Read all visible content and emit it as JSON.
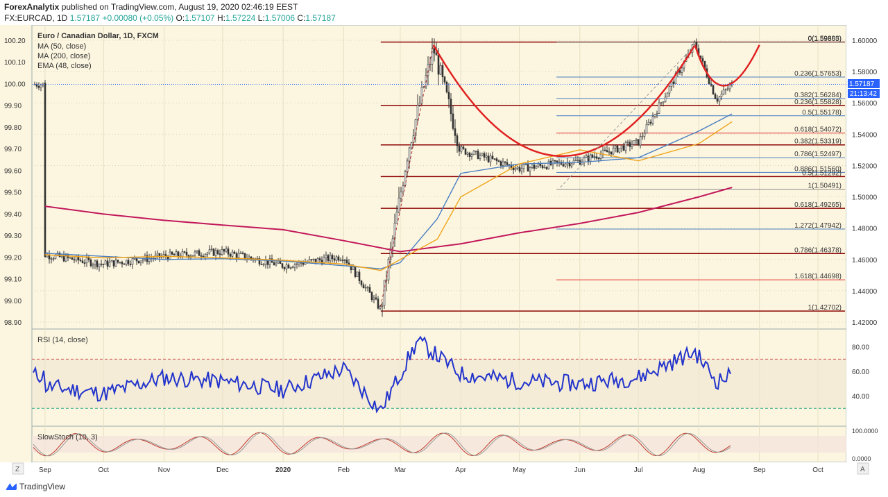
{
  "header": {
    "author": "ForexAnalytix",
    "published": "published on TradingView.com, August 19, 2020 02:46:19 EEST",
    "symbol": "FX:EURCAD, 1D",
    "last": "1.57187",
    "change": "+0.00080 (+0.05%)",
    "o_label": "O:",
    "o": "1.57107",
    "h_label": "H:",
    "h": "1.57224",
    "l_label": "L:",
    "l": "1.57006",
    "c_label": "C:",
    "c": "1.57187"
  },
  "legend": {
    "title": "Euro / Canadian Dollar, 1D, FXCM",
    "ma50": "MA (50, close)",
    "ma200": "MA (200, close)",
    "ema48": "EMA (48, close)"
  },
  "rsi_label": "RSI (14, close)",
  "stoch_label": "SlowStoch (10, 3)",
  "price_badge": "1.57187",
  "timer_badge": "21:13:42",
  "footer": {
    "brand": "TradingView",
    "zoom_left": "Z",
    "auto": "A"
  },
  "colors": {
    "background": "#fcf6e0",
    "ma50": "#4a7ec2",
    "ma200": "#c2185b",
    "ema48": "#f0a31a",
    "rsi": "#2233cc",
    "cup": "#e02020",
    "level": "#8b0000",
    "fib_blue": "#4a7ec2",
    "fib_red": "#e53935",
    "candle_up": "#333333",
    "candle_down": "#333333"
  },
  "chart_data": [
    {
      "type": "line",
      "title": "Euro / Canadian Dollar, 1D, FXCM",
      "x_axis_ticks": [
        "Sep",
        "Oct",
        "Nov",
        "Dec",
        "2020",
        "Feb",
        "Mar",
        "Apr",
        "May",
        "Jun",
        "Jul",
        "Aug",
        "Sep",
        "Oct"
      ],
      "right_axis_ticks": [
        "1.60000",
        "1.58000",
        "1.56000",
        "1.54000",
        "1.52000",
        "1.50000",
        "1.48000",
        "1.46000",
        "1.44000",
        "1.42000"
      ],
      "right_axis_range": [
        1.42,
        1.6
      ],
      "left_axis_ticks": [
        "100.20",
        "100.10",
        "100.00",
        "99.90",
        "99.80",
        "99.70",
        "99.60",
        "99.50",
        "99.40",
        "99.30",
        "99.20",
        "99.10",
        "99.00",
        "98.90"
      ],
      "left_axis_range": [
        98.9,
        100.2
      ],
      "series": [
        {
          "name": "MA (50, close)",
          "x": [
            "2019-09",
            "2019-10",
            "2019-11",
            "2019-12",
            "2020-01",
            "2020-02",
            "2020-02-20",
            "2020-03",
            "2020-03-20",
            "2020-04",
            "2020-05",
            "2020-06",
            "2020-07",
            "2020-08",
            "2020-08-18"
          ],
          "values": [
            1.464,
            1.462,
            1.46,
            1.4605,
            1.459,
            1.456,
            1.454,
            1.458,
            1.486,
            1.515,
            1.521,
            1.522,
            1.525,
            1.542,
            1.553
          ]
        },
        {
          "name": "MA (200, close)",
          "x": [
            "2019-09",
            "2019-10",
            "2019-11",
            "2019-12",
            "2020-01",
            "2020-02",
            "2020-03",
            "2020-04",
            "2020-05",
            "2020-06",
            "2020-07",
            "2020-08",
            "2020-08-18"
          ],
          "values": [
            1.494,
            1.489,
            1.485,
            1.482,
            1.479,
            1.472,
            1.465,
            1.47,
            1.477,
            1.483,
            1.49,
            1.5,
            1.506
          ]
        },
        {
          "name": "EMA (48, close)",
          "x": [
            "2019-09",
            "2019-10",
            "2019-11",
            "2019-12",
            "2020-01",
            "2020-02",
            "2020-02-20",
            "2020-03",
            "2020-03-20",
            "2020-04",
            "2020-05",
            "2020-06",
            "2020-07",
            "2020-08",
            "2020-08-18"
          ],
          "values": [
            1.463,
            1.461,
            1.462,
            1.461,
            1.4595,
            1.457,
            1.453,
            1.46,
            1.473,
            1.5,
            1.521,
            1.53,
            1.523,
            1.534,
            1.548
          ]
        }
      ],
      "price_path": {
        "x": [
          "2019-09",
          "2019-10",
          "2019-11",
          "2019-12",
          "2020-01",
          "2020-02",
          "2020-02-20",
          "2020-03-05",
          "2020-03-18",
          "2020-04",
          "2020-05",
          "2020-06",
          "2020-07",
          "2020-07-30",
          "2020-08-10",
          "2020-08-18"
        ],
        "close": [
          1.463,
          1.457,
          1.462,
          1.465,
          1.456,
          1.462,
          1.428,
          1.53,
          1.595,
          1.53,
          1.518,
          1.523,
          1.535,
          1.598,
          1.562,
          1.5719
        ]
      },
      "horizontal_levels": [
        {
          "label": "0(1.59883)",
          "value": 1.59883
        },
        {
          "label": "0(1.59865)",
          "value": 1.59865
        },
        {
          "label": "0.236(1.57653)",
          "value": 1.57653
        },
        {
          "label": "0.382(1.56284)",
          "value": 1.56284
        },
        {
          "label": "0.236(1.55828)",
          "value": 1.55828
        },
        {
          "label": "0.5(1.55178)",
          "value": 1.55178
        },
        {
          "label": "0.618(1.54072)",
          "value": 1.54072
        },
        {
          "label": "0.382(1.53319)",
          "value": 1.53319
        },
        {
          "label": "0.786(1.52497)",
          "value": 1.52497
        },
        {
          "label": "0.886(1.51560)",
          "value": 1.5156
        },
        {
          "label": "0.5(1.51292)",
          "value": 1.51292
        },
        {
          "label": "1(1.50491)",
          "value": 1.50491
        },
        {
          "label": "0.618(1.49265)",
          "value": 1.49265
        },
        {
          "label": "1.272(1.47942)",
          "value": 1.47942
        },
        {
          "label": "0.786(1.46378)",
          "value": 1.46378
        },
        {
          "label": "1.618(1.44698)",
          "value": 1.44698
        },
        {
          "label": "1(1.42702)",
          "value": 1.42702
        }
      ],
      "annotations": [
        "cup-and-handle pattern drawn in red"
      ]
    },
    {
      "type": "line",
      "title": "RSI (14, close)",
      "y_ticks": [
        "80.00",
        "60.00",
        "40.00"
      ],
      "ylim": [
        20,
        90
      ],
      "bands": [
        70,
        30
      ],
      "series": [
        {
          "name": "RSI (14, close)",
          "x": [
            "2019-09",
            "2019-10",
            "2019-11",
            "2019-12",
            "2020-01",
            "2020-02",
            "2020-02-20",
            "2020-03-10",
            "2020-04",
            "2020-05",
            "2020-06",
            "2020-07",
            "2020-07-30",
            "2020-08-10",
            "2020-08-18"
          ],
          "values": [
            48,
            42,
            55,
            52,
            45,
            62,
            28,
            85,
            58,
            52,
            50,
            55,
            76,
            52,
            57
          ]
        }
      ]
    },
    {
      "type": "line",
      "title": "SlowStoch (10, 3)",
      "y_ticks": [
        "100.0000",
        "0.0000"
      ],
      "ylim": [
        0,
        100
      ],
      "series": [
        {
          "name": "SlowStoch (10, 3)",
          "x": [
            "2019-09",
            "2019-10",
            "2019-11",
            "2019-12",
            "2020-01",
            "2020-02",
            "2020-03",
            "2020-04",
            "2020-05",
            "2020-06",
            "2020-07",
            "2020-08",
            "2020-08-18"
          ],
          "values": [
            20,
            70,
            30,
            80,
            20,
            75,
            95,
            30,
            70,
            20,
            80,
            10,
            40
          ]
        }
      ]
    }
  ]
}
